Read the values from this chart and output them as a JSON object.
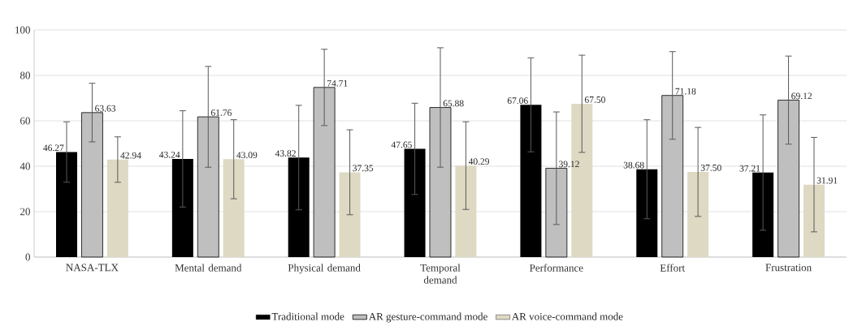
{
  "chart_data": {
    "type": "bar",
    "categories": [
      "NASA-TLX",
      "Mental demand",
      "Physical demand",
      "Temporal demand",
      "Performance",
      "Effort",
      "Frustration"
    ],
    "series": [
      {
        "name": "Traditional mode",
        "color": "#000000",
        "values": [
          46.27,
          43.24,
          43.82,
          47.65,
          67.06,
          38.68,
          37.21
        ],
        "errors": [
          13.3,
          21.2,
          23.0,
          20.1,
          20.7,
          21.8,
          25.4
        ],
        "value_labels": [
          "46.27",
          "43.24",
          "43.82",
          "47.65",
          "67.06",
          "38.68",
          "37.21"
        ]
      },
      {
        "name": "AR gesture-command mode",
        "color": "#bfbfbf",
        "values": [
          63.63,
          61.76,
          74.71,
          65.88,
          39.12,
          71.18,
          69.12
        ],
        "errors": [
          12.9,
          22.2,
          16.8,
          26.3,
          24.8,
          19.3,
          19.4
        ],
        "value_labels": [
          "63.63",
          "61.76",
          "74.71",
          "65.88",
          "39.12",
          "71.18",
          "69.12"
        ]
      },
      {
        "name": "AR voice-command mode",
        "color": "#ddd9c3",
        "values": [
          42.94,
          43.09,
          37.35,
          40.29,
          67.5,
          37.5,
          31.91
        ],
        "errors": [
          10.0,
          17.4,
          18.7,
          19.3,
          21.4,
          19.6,
          20.8
        ],
        "value_labels": [
          "42.94",
          "43.09",
          "37.35",
          "40.29",
          "67.50",
          "37.50",
          "31.91"
        ]
      }
    ],
    "ylim": [
      0,
      100
    ],
    "yticks": [
      0,
      20,
      40,
      60,
      80,
      100
    ],
    "grid": "y",
    "legend": "bottom"
  }
}
